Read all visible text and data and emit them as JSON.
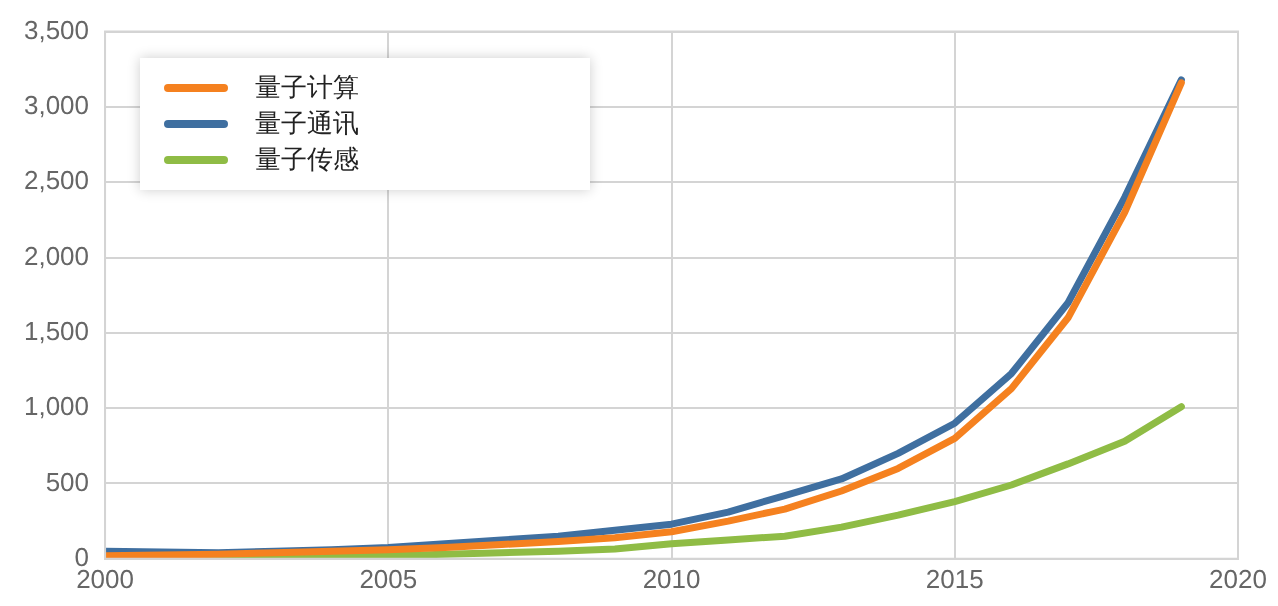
{
  "chart_data": {
    "type": "line",
    "x": [
      2000,
      2001,
      2002,
      2003,
      2004,
      2005,
      2006,
      2007,
      2008,
      2009,
      2010,
      2011,
      2012,
      2013,
      2014,
      2015,
      2016,
      2017,
      2018,
      2019
    ],
    "series": [
      {
        "name": "量子计算",
        "color": "#f5811f",
        "values": [
          20,
          25,
          30,
          40,
          50,
          60,
          75,
          95,
          115,
          140,
          180,
          250,
          330,
          450,
          600,
          800,
          1130,
          1600,
          2300,
          3160
        ]
      },
      {
        "name": "量子通讯",
        "color": "#3f6fa0",
        "values": [
          50,
          45,
          40,
          50,
          60,
          75,
          100,
          125,
          150,
          190,
          230,
          310,
          420,
          530,
          700,
          900,
          1230,
          1700,
          2400,
          3180
        ]
      },
      {
        "name": "量子传感",
        "color": "#8fbc45",
        "values": [
          10,
          10,
          10,
          15,
          15,
          20,
          30,
          40,
          50,
          65,
          100,
          125,
          150,
          210,
          290,
          380,
          490,
          630,
          780,
          1010
        ]
      }
    ],
    "xlim": [
      2000,
      2020
    ],
    "xticks": [
      2000,
      2005,
      2010,
      2015,
      2020
    ],
    "ylim": [
      0,
      3500
    ],
    "yticks": [
      {
        "value": 0,
        "label": "0"
      },
      {
        "value": 500,
        "label": "500"
      },
      {
        "value": 1000,
        "label": "1,000"
      },
      {
        "value": 1500,
        "label": "1,500"
      },
      {
        "value": 2000,
        "label": "2,000"
      },
      {
        "value": 2500,
        "label": "2,500"
      },
      {
        "value": 3000,
        "label": "3,000"
      },
      {
        "value": 3500,
        "label": "3,500"
      }
    ],
    "grid": true,
    "legend": "top left",
    "marker": "none",
    "line_style": "solid"
  }
}
